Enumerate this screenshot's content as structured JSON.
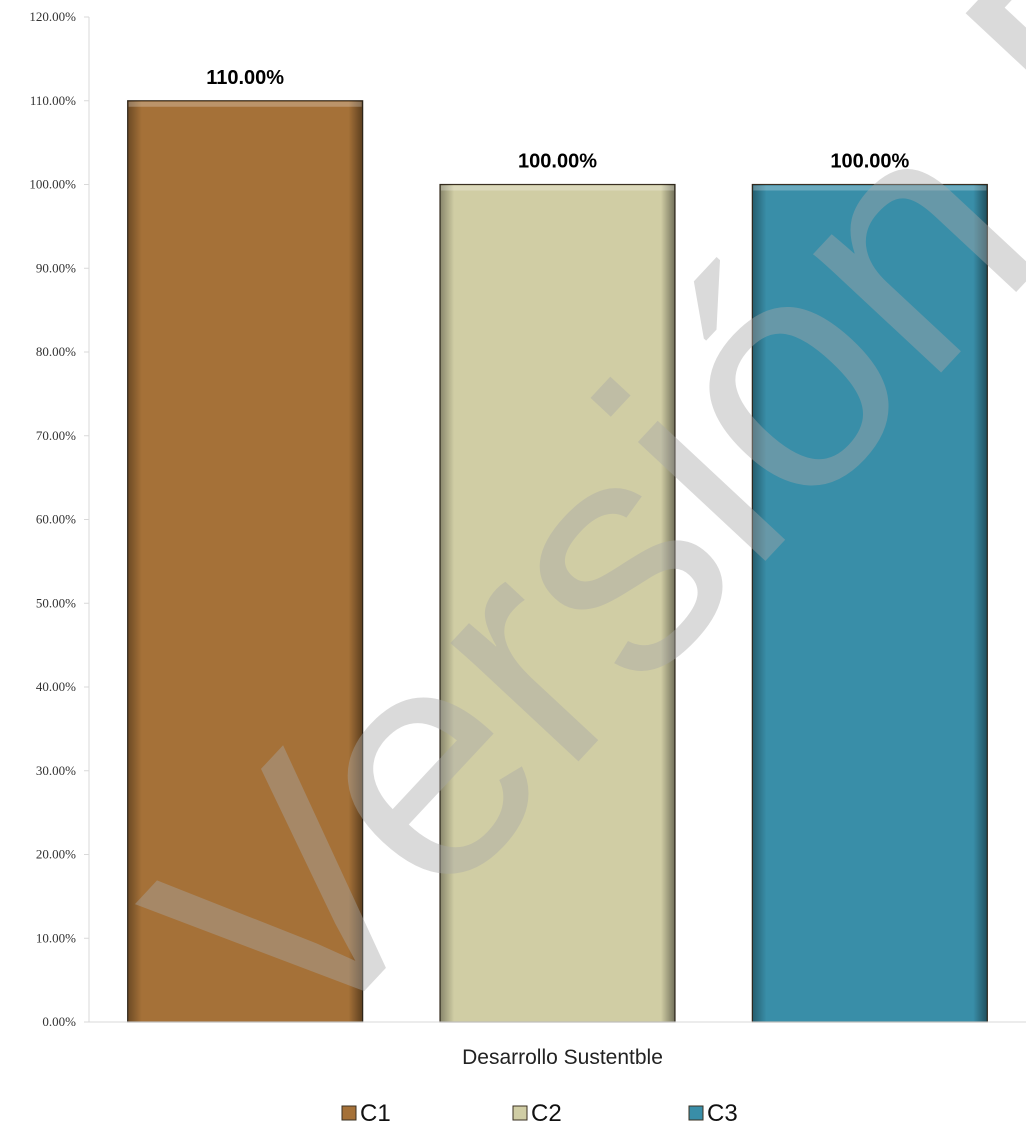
{
  "chart_data": {
    "type": "bar",
    "categories": [
      "Desarrollo Sustentble"
    ],
    "series": [
      {
        "name": "C1",
        "values": [
          110.0
        ],
        "color": "#a57138",
        "data_label": "110.00%"
      },
      {
        "name": "C2",
        "values": [
          100.0
        ],
        "color": "#d0cda4",
        "data_label": "100.00%"
      },
      {
        "name": "C3",
        "values": [
          100.0
        ],
        "color": "#398ea8",
        "data_label": "100.00%"
      }
    ],
    "title": "",
    "xlabel": "",
    "ylabel": "",
    "ylim": [
      0,
      120
    ],
    "yticks": [
      "0.00%",
      "10.00%",
      "20.00%",
      "30.00%",
      "40.00%",
      "50.00%",
      "60.00%",
      "70.00%",
      "80.00%",
      "90.00%",
      "100.00%",
      "110.00%",
      "120.00%"
    ],
    "grid": false,
    "legend_position": "bottom"
  },
  "watermark": {
    "text": "Versión Pública"
  }
}
